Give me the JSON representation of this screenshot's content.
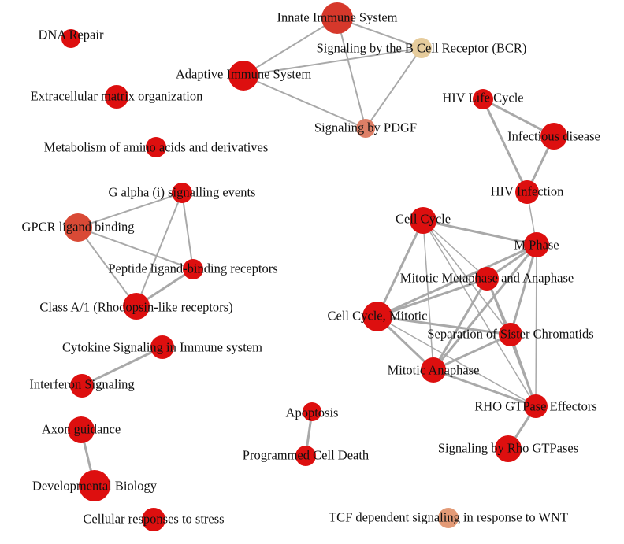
{
  "colors": {
    "red": "#dd0f0f",
    "redDark": "#d6382b",
    "redMedium": "#d94a36",
    "salmon": "#de7f66",
    "peach": "#e39a76",
    "beige": "#e6cc9c",
    "edge": "#a9a9a9"
  },
  "nodes": [
    {
      "id": "dna-repair",
      "label": "DNA Repair",
      "color": "red"
    },
    {
      "id": "innate-immune-system",
      "label": "Innate Immune System",
      "color": "redDark"
    },
    {
      "id": "signaling-bcr",
      "label": "Signaling by the B Cell Receptor (BCR)",
      "color": "beige"
    },
    {
      "id": "adaptive-immune-system",
      "label": "Adaptive Immune System",
      "color": "red"
    },
    {
      "id": "extracellular-matrix",
      "label": "Extracellular matrix organization",
      "color": "red"
    },
    {
      "id": "signaling-pdgf",
      "label": "Signaling by PDGF",
      "color": "salmon"
    },
    {
      "id": "hiv-life-cycle",
      "label": "HIV Life Cycle",
      "color": "red"
    },
    {
      "id": "infectious-disease",
      "label": "Infectious disease",
      "color": "red"
    },
    {
      "id": "metabolism-amino-acids",
      "label": "Metabolism of amino acids and derivatives",
      "color": "red"
    },
    {
      "id": "g-alpha-i",
      "label": "G alpha (i) signalling events",
      "color": "red"
    },
    {
      "id": "hiv-infection",
      "label": "HIV Infection",
      "color": "red"
    },
    {
      "id": "gpcr-ligand-binding",
      "label": "GPCR ligand binding",
      "color": "redMedium"
    },
    {
      "id": "cell-cycle",
      "label": "Cell Cycle",
      "color": "red"
    },
    {
      "id": "m-phase",
      "label": "M Phase",
      "color": "red"
    },
    {
      "id": "peptide-ligand-binding",
      "label": "Peptide ligand-binding receptors",
      "color": "red"
    },
    {
      "id": "mitotic-metaphase-anaphase",
      "label": "Mitotic Metaphase and Anaphase",
      "color": "red"
    },
    {
      "id": "class-a1",
      "label": "Class A/1 (Rhodopsin-like receptors)",
      "color": "red"
    },
    {
      "id": "cell-cycle-mitotic",
      "label": "Cell Cycle, Mitotic",
      "color": "red"
    },
    {
      "id": "separation-sister-chromatids",
      "label": "Separation of Sister Chromatids",
      "color": "red"
    },
    {
      "id": "cytokine-signaling",
      "label": "Cytokine Signaling in Immune system",
      "color": "red"
    },
    {
      "id": "mitotic-anaphase",
      "label": "Mitotic Anaphase",
      "color": "red"
    },
    {
      "id": "interferon-signaling",
      "label": "Interferon Signaling",
      "color": "red"
    },
    {
      "id": "rho-gtpase-effectors",
      "label": "RHO GTPase Effectors",
      "color": "red"
    },
    {
      "id": "apoptosis",
      "label": "Apoptosis",
      "color": "red"
    },
    {
      "id": "axon-guidance",
      "label": "Axon guidance",
      "color": "red"
    },
    {
      "id": "programmed-cell-death",
      "label": "Programmed Cell Death",
      "color": "red"
    },
    {
      "id": "signaling-rho-gtpases",
      "label": "Signaling by Rho GTPases",
      "color": "red"
    },
    {
      "id": "developmental-biology",
      "label": "Developmental Biology",
      "color": "red"
    },
    {
      "id": "cellular-responses-stress",
      "label": "Cellular responses to stress",
      "color": "red"
    },
    {
      "id": "tcf-signaling-wnt",
      "label": "TCF dependent signaling in response to WNT",
      "color": "peach"
    }
  ],
  "edges": [
    [
      "innate-immune-system",
      "signaling-bcr",
      2
    ],
    [
      "innate-immune-system",
      "adaptive-immune-system",
      2
    ],
    [
      "innate-immune-system",
      "signaling-pdgf",
      2
    ],
    [
      "adaptive-immune-system",
      "signaling-bcr",
      2
    ],
    [
      "adaptive-immune-system",
      "signaling-pdgf",
      2
    ],
    [
      "signaling-bcr",
      "signaling-pdgf",
      2
    ],
    [
      "hiv-life-cycle",
      "infectious-disease",
      3
    ],
    [
      "hiv-life-cycle",
      "hiv-infection",
      3
    ],
    [
      "infectious-disease",
      "hiv-infection",
      3
    ],
    [
      "hiv-infection",
      "m-phase",
      1.5
    ],
    [
      "gpcr-ligand-binding",
      "g-alpha-i",
      2
    ],
    [
      "gpcr-ligand-binding",
      "peptide-ligand-binding",
      2
    ],
    [
      "gpcr-ligand-binding",
      "class-a1",
      2
    ],
    [
      "g-alpha-i",
      "peptide-ligand-binding",
      2
    ],
    [
      "g-alpha-i",
      "class-a1",
      2
    ],
    [
      "peptide-ligand-binding",
      "class-a1",
      3
    ],
    [
      "cell-cycle",
      "m-phase",
      3
    ],
    [
      "cell-cycle",
      "mitotic-metaphase-anaphase",
      1.5
    ],
    [
      "cell-cycle",
      "cell-cycle-mitotic",
      3
    ],
    [
      "cell-cycle",
      "separation-sister-chromatids",
      1.5
    ],
    [
      "cell-cycle",
      "mitotic-anaphase",
      1.5
    ],
    [
      "cell-cycle",
      "rho-gtpase-effectors",
      1.5
    ],
    [
      "m-phase",
      "mitotic-metaphase-anaphase",
      3
    ],
    [
      "m-phase",
      "cell-cycle-mitotic",
      3
    ],
    [
      "m-phase",
      "separation-sister-chromatids",
      3
    ],
    [
      "m-phase",
      "mitotic-anaphase",
      3
    ],
    [
      "m-phase",
      "rho-gtpase-effectors",
      1.5
    ],
    [
      "mitotic-metaphase-anaphase",
      "cell-cycle-mitotic",
      3
    ],
    [
      "mitotic-metaphase-anaphase",
      "separation-sister-chromatids",
      3
    ],
    [
      "mitotic-metaphase-anaphase",
      "mitotic-anaphase",
      3
    ],
    [
      "mitotic-metaphase-anaphase",
      "rho-gtpase-effectors",
      1.5
    ],
    [
      "cell-cycle-mitotic",
      "separation-sister-chromatids",
      3
    ],
    [
      "cell-cycle-mitotic",
      "mitotic-anaphase",
      3
    ],
    [
      "cell-cycle-mitotic",
      "rho-gtpase-effectors",
      1.5
    ],
    [
      "separation-sister-chromatids",
      "mitotic-anaphase",
      3
    ],
    [
      "separation-sister-chromatids",
      "rho-gtpase-effectors",
      3
    ],
    [
      "mitotic-anaphase",
      "rho-gtpase-effectors",
      3
    ],
    [
      "rho-gtpase-effectors",
      "signaling-rho-gtpases",
      3
    ],
    [
      "cytokine-signaling",
      "interferon-signaling",
      3
    ],
    [
      "apoptosis",
      "programmed-cell-death",
      3
    ],
    [
      "axon-guidance",
      "developmental-biology",
      3
    ]
  ]
}
